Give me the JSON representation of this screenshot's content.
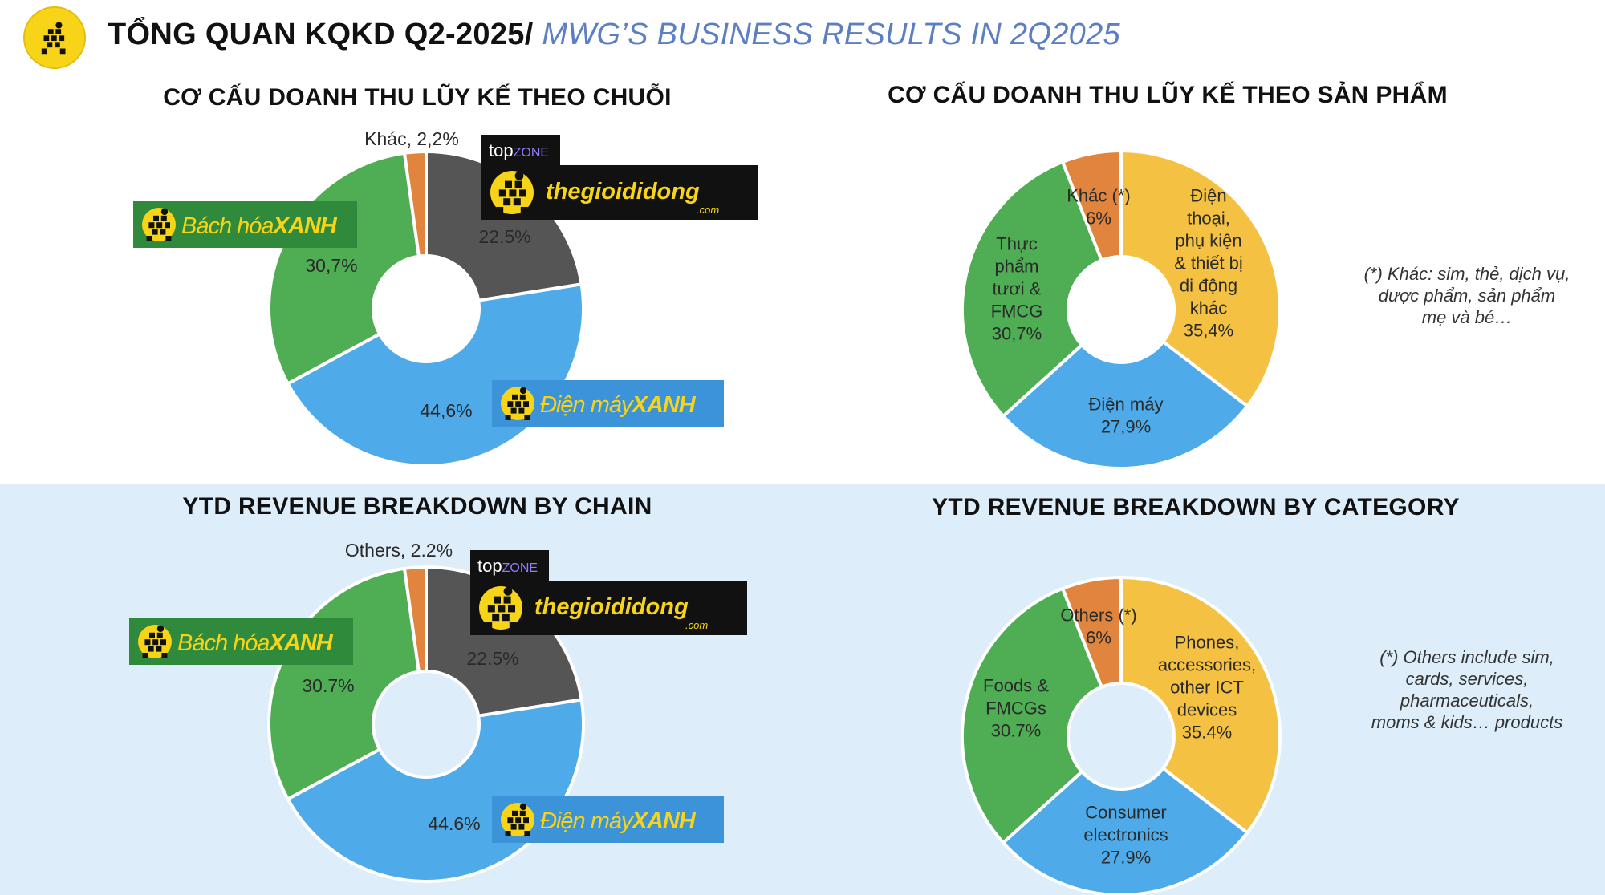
{
  "header": {
    "title_vn": "TỔNG QUAN KQKD Q2-2025/",
    "title_en": " MWG’S BUSINESS RESULTS IN 2Q2025",
    "logo_icon": "running-man-icon"
  },
  "colors": {
    "tgdd": "#555555",
    "dmx": "#4eaae8",
    "bhx": "#4fae54",
    "others": "#e0843e",
    "phones": "#f4c142",
    "band": "#ddeefa"
  },
  "brands": {
    "topzone": {
      "top": "top",
      "zone": "ZONE"
    },
    "tgdd": {
      "name": "thegioididong",
      "suffix": ".com"
    },
    "dmx": {
      "prefix": "Điện máy",
      "suffix": "XANH"
    },
    "bhx": {
      "prefix": "Bách hóa",
      "suffix": "XANH"
    }
  },
  "chart_data": [
    {
      "id": "chain_vn",
      "type": "pie",
      "title": "CƠ CẤU DOANH THU LŨY KẾ THEO CHUỖI",
      "slices": [
        {
          "key": "tgdd",
          "name": "Thế Giới Di Động & TopZone",
          "value": 22.5,
          "label": "22,5%"
        },
        {
          "key": "dmx",
          "name": "Điện Máy Xanh",
          "value": 44.6,
          "label": "44,6%"
        },
        {
          "key": "bhx",
          "name": "Bách Hóa Xanh",
          "value": 30.7,
          "label": "30,7%"
        },
        {
          "key": "others",
          "name": "Khác",
          "value": 2.2,
          "label": "Khác, 2,2%"
        }
      ]
    },
    {
      "id": "category_vn",
      "type": "pie",
      "title": "CƠ CẤU DOANH THU LŨY KẾ THEO SẢN PHẨM",
      "slices": [
        {
          "key": "phones",
          "value": 35.4,
          "label": "Điện\nthoại,\nphụ kiện\n& thiết bị\ndi động\nkhác\n35,4%"
        },
        {
          "key": "dmx",
          "value": 27.9,
          "label": "Điện máy\n27,9%"
        },
        {
          "key": "bhx",
          "value": 30.7,
          "label": "Thực\nphẩm\ntươi &\nFMCG\n30,7%"
        },
        {
          "key": "others",
          "value": 6,
          "label": "Khác (*)\n6%"
        }
      ],
      "note": "(*) Khác: sim, thẻ, dịch vụ,\ndược phẩm, sản phẩm\nmẹ và bé…"
    },
    {
      "id": "chain_en",
      "type": "pie",
      "title": "YTD REVENUE BREAKDOWN BY CHAIN",
      "slices": [
        {
          "key": "tgdd",
          "name": "Thegioididong & TopZone",
          "value": 22.5,
          "label": "22.5%"
        },
        {
          "key": "dmx",
          "name": "Dien May Xanh",
          "value": 44.6,
          "label": "44.6%"
        },
        {
          "key": "bhx",
          "name": "Bach Hoa Xanh",
          "value": 30.7,
          "label": "30.7%"
        },
        {
          "key": "others",
          "name": "Others",
          "value": 2.2,
          "label": "Others, 2.2%"
        }
      ]
    },
    {
      "id": "category_en",
      "type": "pie",
      "title": "YTD REVENUE BREAKDOWN BY CATEGORY",
      "slices": [
        {
          "key": "phones",
          "value": 35.4,
          "label": "Phones,\naccessories,\nother ICT\ndevices\n35.4%"
        },
        {
          "key": "dmx",
          "value": 27.9,
          "label": "Consumer\nelectronics\n27.9%"
        },
        {
          "key": "bhx",
          "value": 30.7,
          "label": "Foods &\nFMCGs\n30.7%"
        },
        {
          "key": "others",
          "value": 6,
          "label": "Others (*)\n6%"
        }
      ],
      "note": "(*) Others include sim,\ncards, services,\npharmaceuticals,\nmoms & kids… products"
    }
  ]
}
